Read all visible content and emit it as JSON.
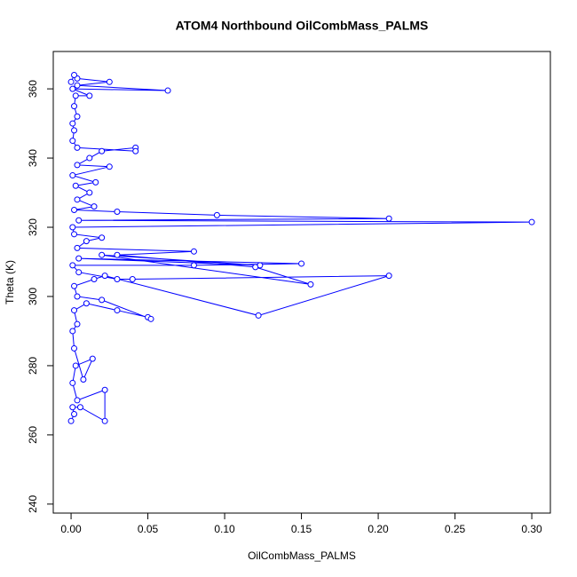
{
  "chart_data": {
    "type": "line",
    "markers": "open-circle",
    "title": "ATOM4 Northbound OilCombMass_PALMS",
    "xlabel": "OilCombMass_PALMS",
    "ylabel": "Theta (K)",
    "color": "#0000ff",
    "xlim": [
      -0.0116,
      0.3121
    ],
    "ylim": [
      237.4,
      370.8
    ],
    "xticks": [
      {
        "value": 0,
        "label": "0.00"
      },
      {
        "value": 0.05,
        "label": "0.05"
      },
      {
        "value": 0.1,
        "label": "0.10"
      },
      {
        "value": 0.15,
        "label": "0.15"
      },
      {
        "value": 0.2,
        "label": "0.20"
      },
      {
        "value": 0.25,
        "label": "0.25"
      },
      {
        "value": 0.3,
        "label": "0.30"
      }
    ],
    "yticks": [
      240,
      260,
      280,
      300,
      320,
      340,
      360
    ],
    "x": [
      0.0,
      0.002,
      0.001,
      0.006,
      0.022,
      0.022,
      0.004,
      0.001,
      0.003,
      0.014,
      0.008,
      0.002,
      0.001,
      0.004,
      0.002,
      0.01,
      0.03,
      0.05,
      0.052,
      0.02,
      0.004,
      0.002,
      0.015,
      0.022,
      0.122,
      0.207,
      0.04,
      0.03,
      0.005,
      0.001,
      0.08,
      0.15,
      0.005,
      0.123,
      0.02,
      0.156,
      0.12,
      0.03,
      0.08,
      0.004,
      0.01,
      0.02,
      0.002,
      0.001,
      0.3,
      0.005,
      0.207,
      0.095,
      0.03,
      0.002,
      0.015,
      0.004,
      0.012,
      0.003,
      0.016,
      0.001,
      0.025,
      0.004,
      0.012,
      0.02,
      0.042,
      0.042,
      0.004,
      0.001,
      0.002,
      0.001,
      0.004,
      0.002,
      0.003,
      0.012,
      0.001,
      0.063,
      0.004,
      0.025,
      0.004,
      0.002,
      0.0
    ],
    "values": [
      264,
      266,
      268,
      268,
      264,
      273,
      270,
      275,
      280,
      282,
      276,
      285,
      290,
      292,
      296,
      298,
      296,
      294,
      293.5,
      299,
      300,
      303,
      305,
      306,
      294.5,
      306,
      305,
      305,
      307,
      309,
      309,
      309.5,
      311,
      309,
      312,
      303.5,
      308.5,
      312,
      313,
      314,
      316,
      317,
      318,
      320,
      321.5,
      322,
      322.5,
      323.5,
      324.5,
      325,
      326,
      328,
      330,
      332,
      333,
      335,
      337.5,
      338,
      340,
      342,
      343,
      342,
      343,
      345,
      348,
      350,
      352,
      355,
      358,
      358,
      360,
      359.5,
      361,
      362,
      363,
      364,
      362
    ]
  }
}
